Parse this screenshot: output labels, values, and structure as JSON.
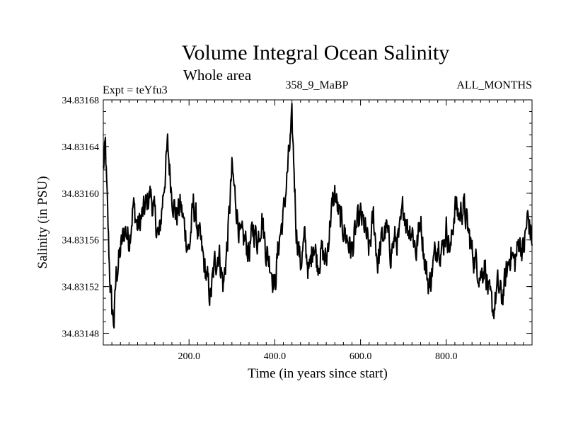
{
  "chart_data": {
    "type": "line",
    "title": "Volume Integral Ocean Salinity",
    "subtitle": "Whole area",
    "annotations": {
      "left": "Expt = teYfu3",
      "center": "358_9_MaBP",
      "right": "ALL_MONTHS"
    },
    "xlabel": "Time (in years since start)",
    "ylabel": "Salinity (in PSU)",
    "xlim": [
      0,
      1000
    ],
    "ylim": [
      34.83147,
      34.83168
    ],
    "x_ticks": [
      200,
      400,
      600,
      800
    ],
    "x_tick_labels": [
      "200.0",
      "400.0",
      "600.0",
      "800.0"
    ],
    "y_ticks": [
      34.83148,
      34.83152,
      34.83156,
      34.8316,
      34.83164,
      34.83168
    ],
    "y_tick_labels": [
      "34.83148",
      "34.83152",
      "34.83156",
      "34.83160",
      "34.83164",
      "34.83168"
    ],
    "grid": false,
    "line_color": "#000000",
    "series": [
      {
        "name": "Salinity",
        "x": [
          0,
          5,
          10,
          15,
          20,
          25,
          30,
          40,
          50,
          60,
          70,
          80,
          90,
          100,
          110,
          120,
          130,
          140,
          150,
          160,
          170,
          180,
          190,
          200,
          210,
          220,
          230,
          240,
          250,
          260,
          270,
          280,
          290,
          300,
          310,
          320,
          330,
          340,
          350,
          360,
          370,
          380,
          390,
          400,
          410,
          420,
          430,
          435,
          440,
          445,
          450,
          460,
          470,
          480,
          490,
          500,
          510,
          520,
          530,
          540,
          550,
          560,
          570,
          580,
          590,
          600,
          610,
          620,
          630,
          640,
          650,
          660,
          670,
          680,
          690,
          700,
          710,
          720,
          730,
          740,
          750,
          760,
          770,
          780,
          790,
          800,
          810,
          820,
          830,
          840,
          850,
          860,
          870,
          880,
          890,
          900,
          910,
          920,
          930,
          940,
          950,
          960,
          970,
          980,
          990,
          1000
        ],
        "values": [
          34.83162,
          34.83164,
          34.83158,
          34.83153,
          34.8315,
          34.83149,
          34.83153,
          34.83155,
          34.83157,
          34.83156,
          34.83159,
          34.83157,
          34.83158,
          34.83159,
          34.8316,
          34.83158,
          34.83156,
          34.8316,
          34.83164,
          34.8316,
          34.83158,
          34.83159,
          34.83157,
          34.83155,
          34.83159,
          34.83157,
          34.83155,
          34.83153,
          34.83151,
          34.83154,
          34.83155,
          34.83152,
          34.83156,
          34.83162,
          34.83159,
          34.83156,
          34.83156,
          34.83155,
          34.83157,
          34.83156,
          34.83158,
          34.83155,
          34.83154,
          34.83152,
          34.83156,
          34.83158,
          34.83162,
          34.83164,
          34.83166,
          34.83162,
          34.83157,
          34.83154,
          34.83156,
          34.83153,
          34.83156,
          34.83154,
          34.83155,
          34.83154,
          34.83158,
          34.8316,
          34.83158,
          34.83157,
          34.83156,
          34.83155,
          34.83157,
          34.83158,
          34.83157,
          34.83155,
          34.83158,
          34.83154,
          34.83156,
          34.83157,
          34.83155,
          34.83156,
          34.83156,
          34.83159,
          34.83157,
          34.83157,
          34.83155,
          34.83158,
          34.83154,
          34.83152,
          34.83154,
          34.83156,
          34.83155,
          34.83157,
          34.83155,
          34.83159,
          34.83158,
          34.83159,
          34.83157,
          34.83155,
          34.83154,
          34.83153,
          34.83154,
          34.83151,
          34.8315,
          34.83152,
          34.83151,
          34.83153,
          34.83155,
          34.83154,
          34.83156,
          34.83155,
          34.83158,
          34.83156
        ]
      }
    ]
  }
}
